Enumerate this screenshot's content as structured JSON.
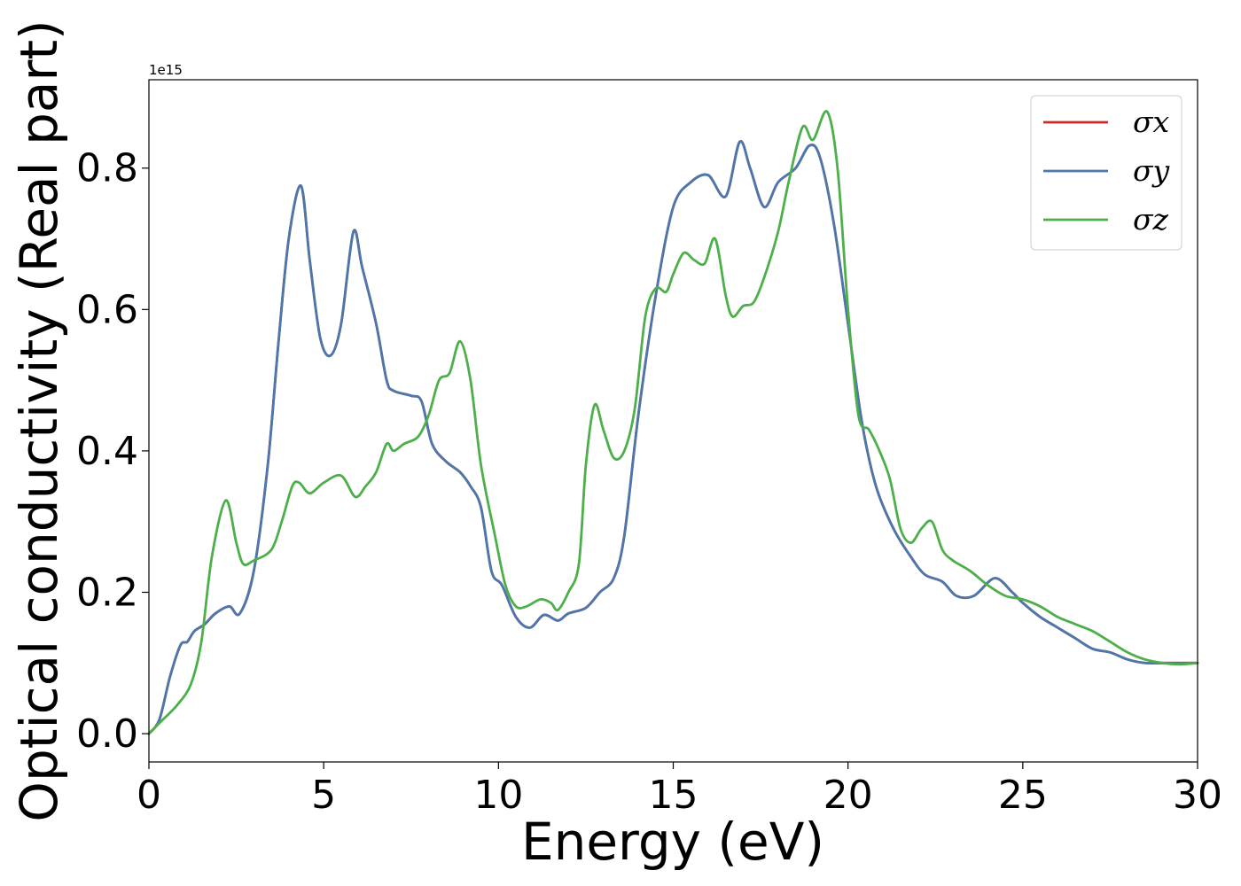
{
  "chart_data": {
    "type": "line",
    "xlabel": "Energy (eV)",
    "ylabel": "Optical conductivity (Real part)",
    "offset_text": "1e15",
    "xlim": [
      0,
      30
    ],
    "ylim": [
      -0.04,
      0.925
    ],
    "x_ticks": [
      0,
      5,
      10,
      15,
      20,
      25,
      30
    ],
    "x_tick_labels": [
      "0",
      "5",
      "10",
      "15",
      "20",
      "25",
      "30"
    ],
    "y_ticks": [
      0.0,
      0.2,
      0.4,
      0.6,
      0.8
    ],
    "y_tick_labels": [
      "0.0",
      "0.2",
      "0.4",
      "0.6",
      "0.8"
    ],
    "grid": false,
    "legend_position": "top-right",
    "series": [
      {
        "name": "σx",
        "color": "#d62728",
        "x": [
          0,
          0.3,
          0.6,
          0.9,
          1.1,
          1.3,
          1.6,
          1.9,
          2.3,
          2.6,
          3.0,
          3.4,
          3.7,
          4.0,
          4.35,
          4.6,
          4.9,
          5.2,
          5.5,
          5.85,
          6.1,
          6.5,
          6.8,
          7.0,
          7.5,
          7.8,
          8.1,
          8.5,
          8.9,
          9.2,
          9.5,
          9.8,
          10.1,
          10.5,
          10.9,
          11.3,
          11.7,
          12.0,
          12.5,
          12.9,
          13.3,
          13.6,
          14.0,
          14.5,
          15.0,
          15.5,
          16.0,
          16.5,
          16.9,
          17.2,
          17.6,
          18.0,
          18.5,
          18.9,
          19.2,
          19.6,
          20.0,
          20.4,
          20.8,
          21.3,
          21.8,
          22.2,
          22.7,
          23.1,
          23.6,
          24.2,
          24.7,
          25.0,
          25.5,
          26.0,
          26.5,
          27.0,
          27.5,
          28.0,
          28.5,
          29.0,
          29.5,
          30.0
        ],
        "y": [
          0.0,
          0.02,
          0.08,
          0.125,
          0.13,
          0.145,
          0.155,
          0.17,
          0.18,
          0.17,
          0.23,
          0.38,
          0.55,
          0.7,
          0.775,
          0.67,
          0.56,
          0.535,
          0.58,
          0.71,
          0.66,
          0.58,
          0.5,
          0.485,
          0.478,
          0.47,
          0.41,
          0.385,
          0.37,
          0.35,
          0.32,
          0.23,
          0.21,
          0.165,
          0.15,
          0.168,
          0.16,
          0.17,
          0.178,
          0.2,
          0.22,
          0.28,
          0.45,
          0.62,
          0.745,
          0.78,
          0.79,
          0.76,
          0.837,
          0.8,
          0.745,
          0.78,
          0.8,
          0.832,
          0.815,
          0.72,
          0.58,
          0.44,
          0.35,
          0.29,
          0.25,
          0.225,
          0.215,
          0.195,
          0.195,
          0.22,
          0.2,
          0.185,
          0.165,
          0.15,
          0.135,
          0.12,
          0.115,
          0.105,
          0.1,
          0.1,
          0.1,
          0.1
        ]
      },
      {
        "name": "σy",
        "color": "#4a78ad",
        "x": [
          0,
          0.3,
          0.6,
          0.9,
          1.1,
          1.3,
          1.6,
          1.9,
          2.3,
          2.6,
          3.0,
          3.4,
          3.7,
          4.0,
          4.35,
          4.6,
          4.9,
          5.2,
          5.5,
          5.85,
          6.1,
          6.5,
          6.8,
          7.0,
          7.5,
          7.8,
          8.1,
          8.5,
          8.9,
          9.2,
          9.5,
          9.8,
          10.1,
          10.5,
          10.9,
          11.3,
          11.7,
          12.0,
          12.5,
          12.9,
          13.3,
          13.6,
          14.0,
          14.5,
          15.0,
          15.5,
          16.0,
          16.5,
          16.9,
          17.2,
          17.6,
          18.0,
          18.5,
          18.9,
          19.2,
          19.6,
          20.0,
          20.4,
          20.8,
          21.3,
          21.8,
          22.2,
          22.7,
          23.1,
          23.6,
          24.2,
          24.7,
          25.0,
          25.5,
          26.0,
          26.5,
          27.0,
          27.5,
          28.0,
          28.5,
          29.0,
          29.5,
          30.0
        ],
        "y": [
          0.0,
          0.02,
          0.08,
          0.125,
          0.13,
          0.145,
          0.155,
          0.17,
          0.18,
          0.17,
          0.23,
          0.38,
          0.55,
          0.7,
          0.775,
          0.67,
          0.56,
          0.535,
          0.58,
          0.71,
          0.66,
          0.58,
          0.5,
          0.485,
          0.478,
          0.47,
          0.41,
          0.385,
          0.37,
          0.35,
          0.32,
          0.23,
          0.21,
          0.165,
          0.15,
          0.168,
          0.16,
          0.17,
          0.178,
          0.2,
          0.22,
          0.28,
          0.45,
          0.62,
          0.745,
          0.78,
          0.79,
          0.76,
          0.837,
          0.8,
          0.745,
          0.78,
          0.8,
          0.832,
          0.815,
          0.72,
          0.58,
          0.44,
          0.35,
          0.29,
          0.25,
          0.225,
          0.215,
          0.195,
          0.195,
          0.22,
          0.2,
          0.185,
          0.165,
          0.15,
          0.135,
          0.12,
          0.115,
          0.105,
          0.1,
          0.1,
          0.1,
          0.1
        ]
      },
      {
        "name": "σz",
        "color": "#4daf4a",
        "x": [
          0,
          0.4,
          0.8,
          1.2,
          1.5,
          1.8,
          2.2,
          2.5,
          2.7,
          3.0,
          3.5,
          3.8,
          4.1,
          4.3,
          4.6,
          5.0,
          5.5,
          5.9,
          6.2,
          6.5,
          6.8,
          7.0,
          7.3,
          7.7,
          8.0,
          8.3,
          8.6,
          8.9,
          9.2,
          9.5,
          9.9,
          10.2,
          10.5,
          10.8,
          11.2,
          11.5,
          11.7,
          12.0,
          12.3,
          12.5,
          12.75,
          13.0,
          13.3,
          13.6,
          13.9,
          14.2,
          14.5,
          14.8,
          15.0,
          15.3,
          15.6,
          15.9,
          16.2,
          16.5,
          16.7,
          17.0,
          17.3,
          17.6,
          18.0,
          18.3,
          18.7,
          19.0,
          19.4,
          19.7,
          20.0,
          20.3,
          20.6,
          20.9,
          21.2,
          21.5,
          21.8,
          22.1,
          22.4,
          22.7,
          23.0,
          23.5,
          24.0,
          24.5,
          25.0,
          25.5,
          26.0,
          26.5,
          27.0,
          27.5,
          28.0,
          28.5,
          29.0,
          29.5,
          30.0
        ],
        "y": [
          0.0,
          0.02,
          0.04,
          0.07,
          0.13,
          0.25,
          0.33,
          0.27,
          0.24,
          0.245,
          0.26,
          0.3,
          0.35,
          0.355,
          0.34,
          0.355,
          0.365,
          0.335,
          0.35,
          0.37,
          0.41,
          0.4,
          0.41,
          0.42,
          0.45,
          0.5,
          0.51,
          0.555,
          0.5,
          0.38,
          0.28,
          0.21,
          0.18,
          0.18,
          0.19,
          0.185,
          0.175,
          0.2,
          0.24,
          0.38,
          0.465,
          0.43,
          0.39,
          0.4,
          0.46,
          0.59,
          0.63,
          0.625,
          0.65,
          0.68,
          0.67,
          0.665,
          0.7,
          0.62,
          0.59,
          0.605,
          0.61,
          0.645,
          0.71,
          0.78,
          0.858,
          0.84,
          0.88,
          0.8,
          0.6,
          0.45,
          0.43,
          0.4,
          0.36,
          0.29,
          0.27,
          0.29,
          0.3,
          0.26,
          0.245,
          0.23,
          0.21,
          0.195,
          0.19,
          0.18,
          0.165,
          0.155,
          0.145,
          0.13,
          0.115,
          0.105,
          0.1,
          0.098,
          0.1
        ]
      }
    ]
  }
}
